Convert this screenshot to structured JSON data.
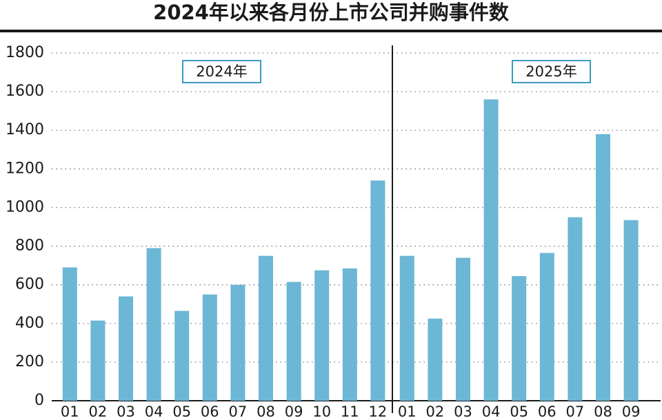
{
  "chart_data": {
    "type": "bar",
    "title": "2024年以来各月份上市公司并购事件数",
    "color": "#6cb6d6",
    "groups": [
      {
        "label": "2024年",
        "categories": [
          "01",
          "02",
          "03",
          "04",
          "05",
          "06",
          "07",
          "08",
          "09",
          "10",
          "11",
          "12"
        ],
        "values": [
          690,
          415,
          540,
          790,
          465,
          550,
          600,
          750,
          615,
          675,
          685,
          1140
        ]
      },
      {
        "label": "2025年",
        "categories": [
          "01",
          "02",
          "03",
          "04",
          "05",
          "06",
          "07",
          "08",
          "09"
        ],
        "values": [
          750,
          425,
          740,
          1560,
          645,
          765,
          950,
          1380,
          935
        ]
      }
    ],
    "ylim": [
      0,
      1800
    ],
    "yticks": [
      0,
      200,
      400,
      600,
      800,
      1000,
      1200,
      1400,
      1600,
      1800
    ],
    "grid": true
  }
}
